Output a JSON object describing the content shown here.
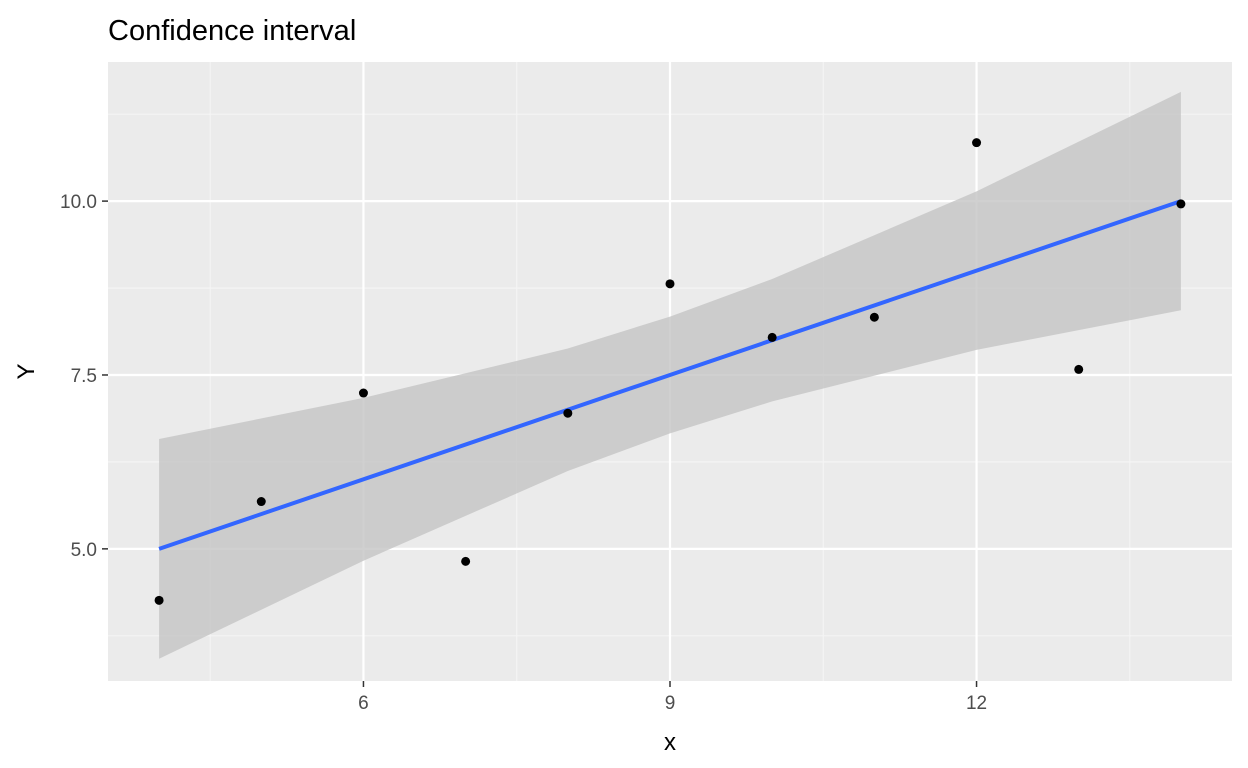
{
  "chart_data": {
    "type": "scatter",
    "title": "Confidence interval",
    "xlabel": "x",
    "ylabel": "Y",
    "xlim": [
      3.5,
      14.5
    ],
    "ylim": [
      3.1,
      12.0
    ],
    "x_ticks": [
      6,
      9,
      12
    ],
    "x_tick_labels": [
      "6",
      "9",
      "12"
    ],
    "y_ticks": [
      5.0,
      7.5,
      10.0
    ],
    "y_tick_labels": [
      "5.0",
      "7.5",
      "10.0"
    ],
    "x_minor": [
      4.5,
      7.5,
      10.5,
      13.5
    ],
    "y_minor": [
      3.75,
      6.25,
      8.75,
      11.25
    ],
    "grid": true,
    "points": [
      {
        "x": 4,
        "y": 4.26
      },
      {
        "x": 5,
        "y": 5.68
      },
      {
        "x": 6,
        "y": 7.24
      },
      {
        "x": 7,
        "y": 4.82
      },
      {
        "x": 8,
        "y": 6.95
      },
      {
        "x": 9,
        "y": 8.81
      },
      {
        "x": 10,
        "y": 8.04
      },
      {
        "x": 11,
        "y": 8.33
      },
      {
        "x": 12,
        "y": 10.84
      },
      {
        "x": 13,
        "y": 7.58
      },
      {
        "x": 14,
        "y": 9.96
      }
    ],
    "fit_line": {
      "x": [
        4,
        14
      ],
      "y": [
        5.0,
        10.0
      ]
    },
    "confidence_band": {
      "x": [
        4,
        6,
        8,
        9,
        10,
        12,
        14
      ],
      "lower": [
        3.42,
        4.83,
        6.12,
        6.66,
        7.12,
        7.86,
        8.43
      ],
      "upper": [
        6.58,
        7.17,
        7.88,
        8.34,
        8.88,
        10.14,
        11.57
      ]
    },
    "colors": {
      "panel": "#ebebeb",
      "grid_major": "#ffffff",
      "grid_minor": "#f5f5f5",
      "band": "#c4c4c4",
      "line": "#3366ff",
      "point": "#000000",
      "tick": "#333333"
    }
  }
}
